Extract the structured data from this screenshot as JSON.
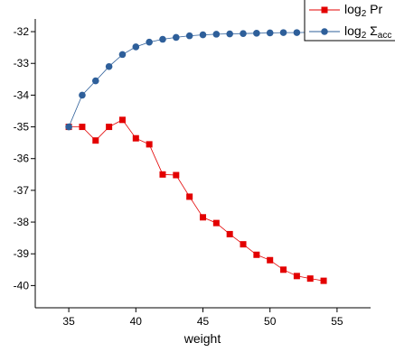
{
  "chart_data": {
    "type": "line",
    "xlabel": "weight",
    "ylabel": "",
    "xlim": [
      32.5,
      57.5
    ],
    "ylim": [
      -40.7,
      -31.6
    ],
    "xticks": [
      35,
      40,
      45,
      50,
      55
    ],
    "yticks": [
      -32,
      -33,
      -34,
      -35,
      -36,
      -37,
      -38,
      -39,
      -40
    ],
    "legend_position": "top-right",
    "series": [
      {
        "name_main": "log",
        "name_sub": "2",
        "name_rest": " Pr",
        "color": "#e30000",
        "marker": "square",
        "x": [
          35,
          36,
          37,
          38,
          39,
          40,
          41,
          42,
          43,
          44,
          45,
          46,
          47,
          48,
          49,
          50,
          51,
          52,
          53,
          54
        ],
        "y": [
          -35.0,
          -35.0,
          -35.43,
          -35.0,
          -34.78,
          -35.36,
          -35.55,
          -36.5,
          -36.52,
          -37.2,
          -37.85,
          -38.03,
          -38.38,
          -38.7,
          -39.03,
          -39.2,
          -39.5,
          -39.7,
          -39.78,
          -39.85
        ]
      },
      {
        "name_main": "log",
        "name_sub": "2",
        "name_rest": " Σ",
        "name_sub2": "acc",
        "color": "#2e5f9a",
        "marker": "circle",
        "x": [
          35,
          36,
          37,
          38,
          39,
          40,
          41,
          42,
          43,
          44,
          45,
          46,
          47,
          48,
          49,
          50,
          51,
          52,
          53,
          54
        ],
        "y": [
          -35.0,
          -34.0,
          -33.55,
          -33.1,
          -32.72,
          -32.48,
          -32.33,
          -32.24,
          -32.18,
          -32.13,
          -32.1,
          -32.08,
          -32.07,
          -32.06,
          -32.05,
          -32.04,
          -32.03,
          -32.03,
          -32.02,
          -32.02
        ]
      }
    ]
  }
}
